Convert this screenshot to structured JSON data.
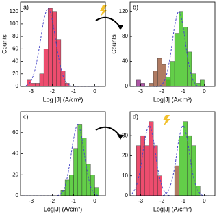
{
  "chart_data": [
    {
      "type": "histogram",
      "label": "a)",
      "xlabel": "Log |J| (A/cm²)",
      "ylabel": "Counts",
      "xlim": [
        -3.5,
        0.5
      ],
      "xticks": [
        -3,
        -2,
        -1,
        0
      ],
      "ylim": [
        0,
        135
      ],
      "yticks": [
        0,
        20,
        40,
        60,
        80,
        100,
        120
      ],
      "bins": [
        -3.4,
        -3.2,
        -3.0,
        -2.8,
        -2.6,
        -2.4,
        -2.2,
        -2.0,
        -1.8,
        -1.6,
        -1.4,
        -1.2,
        -1.0,
        -0.8,
        -0.6,
        -0.4,
        -0.2,
        0.0,
        0.2
      ],
      "series": [
        {
          "color": "#e8204a",
          "values": [
            0,
            10,
            5,
            5,
            20,
            60,
            125,
            120,
            75,
            25,
            5,
            0,
            0,
            0,
            0,
            0,
            0,
            0
          ]
        }
      ],
      "fits": [
        {
          "color": "#4848c8",
          "x": [
            -3.4,
            -3.2,
            -3.0,
            -2.8,
            -2.6,
            -2.4,
            -2.2,
            -2.0,
            -1.8,
            -1.6,
            -1.4,
            -1.2,
            -1.0,
            -0.8,
            -0.6,
            -0.4,
            -0.2,
            0.0,
            0.2
          ],
          "values": [
            0,
            2,
            9,
            29,
            65,
            106,
            125,
            106,
            65,
            29,
            9,
            2,
            0,
            0,
            0,
            0,
            0,
            0,
            0
          ]
        }
      ]
    },
    {
      "type": "histogram",
      "label": "b)",
      "xlabel": "Log|J| (A/cm²)",
      "ylabel": "Counts",
      "xlim": [
        -3.5,
        0.5
      ],
      "xticks": [
        -3,
        -2,
        -1,
        0
      ],
      "ylim": [
        0,
        135
      ],
      "yticks": [
        0,
        40,
        80,
        120
      ],
      "bins": [
        -3.4,
        -3.2,
        -3.0,
        -2.8,
        -2.6,
        -2.4,
        -2.2,
        -2.0,
        -1.8,
        -1.6,
        -1.4,
        -1.2,
        -1.0,
        -0.8,
        -0.6,
        -0.4,
        -0.2,
        0.0,
        0.2
      ],
      "series": [
        {
          "color": "#9a2a90",
          "values": [
            0,
            10,
            5,
            0,
            0,
            0,
            0,
            0,
            0,
            0,
            0,
            0,
            0,
            0,
            0,
            0,
            0,
            0
          ]
        },
        {
          "color": "#9c5a3c",
          "values": [
            0,
            0,
            0,
            0,
            5,
            25,
            45,
            35,
            10,
            0,
            0,
            0,
            0,
            0,
            0,
            0,
            0,
            0
          ]
        },
        {
          "color": "#3cc21c",
          "values": [
            0,
            0,
            0,
            0,
            0,
            0,
            0,
            0,
            15,
            40,
            85,
            120,
            95,
            55,
            20,
            5,
            10,
            0
          ]
        }
      ],
      "fits": [
        {
          "color": "#4848c8",
          "x": [
            -3.4,
            -3.2,
            -3.0,
            -2.8,
            -2.6,
            -2.4,
            -2.2,
            -2.0,
            -1.8,
            -1.6,
            -1.4,
            -1.2,
            -1.0,
            -0.8,
            -0.6,
            -0.4,
            -0.2,
            0.0,
            0.2
          ],
          "values": [
            0,
            0,
            0,
            0,
            0,
            0,
            0,
            3,
            16,
            49,
            96,
            120,
            96,
            49,
            16,
            3,
            0,
            0,
            0
          ]
        }
      ]
    },
    {
      "type": "histogram",
      "label": "c)",
      "xlabel": "Log|J| (A/cm²)",
      "xlim": [
        -3.5,
        0.5
      ],
      "xticks": [
        -3,
        -2,
        -1,
        0
      ],
      "ylim": [
        0,
        80
      ],
      "yticks": [
        0,
        20,
        40,
        60
      ],
      "bins": [
        -3.4,
        -3.2,
        -3.0,
        -2.8,
        -2.6,
        -2.4,
        -2.2,
        -2.0,
        -1.8,
        -1.6,
        -1.4,
        -1.2,
        -1.0,
        -0.8,
        -0.6,
        -0.4,
        -0.2,
        0.0,
        0.2
      ],
      "series": [
        {
          "color": "#3cc21c",
          "values": [
            0,
            0,
            0,
            0,
            0,
            0,
            0,
            0,
            0,
            5,
            15,
            20,
            45,
            68,
            55,
            30,
            20,
            8
          ]
        }
      ],
      "fits": [
        {
          "color": "#4848c8",
          "x": [
            -3.4,
            -3.2,
            -3.0,
            -2.8,
            -2.6,
            -2.4,
            -2.2,
            -2.0,
            -1.8,
            -1.6,
            -1.4,
            -1.2,
            -1.0,
            -0.8,
            -0.6,
            -0.4,
            -0.2,
            0.0,
            0.2
          ],
          "values": [
            0,
            0,
            0,
            0,
            0,
            0,
            0,
            0,
            0,
            2,
            9,
            28,
            54,
            68,
            54,
            28,
            9,
            2,
            0
          ]
        }
      ]
    },
    {
      "type": "histogram",
      "label": "d)",
      "xlabel": "Log|J| (A/cm²)",
      "xlim": [
        -3.5,
        0.5
      ],
      "xticks": [
        -3,
        -2,
        -1,
        0
      ],
      "ylim": [
        0,
        42
      ],
      "yticks": [
        0,
        10,
        20,
        30
      ],
      "bins": [
        -3.4,
        -3.2,
        -3.0,
        -2.8,
        -2.6,
        -2.4,
        -2.2,
        -2.0,
        -1.8,
        -1.6,
        -1.4,
        -1.2,
        -1.0,
        -0.8,
        -0.6,
        -0.4,
        -0.2,
        0.0,
        0.2
      ],
      "series": [
        {
          "color": "#e8204a",
          "values": [
            0,
            25,
            30,
            25,
            37,
            25,
            10,
            0,
            0,
            0,
            0,
            0,
            0,
            0,
            0,
            0,
            0,
            0
          ]
        },
        {
          "color": "#9c5a3c",
          "values": [
            0,
            0,
            0,
            0,
            0,
            0,
            0,
            0,
            0,
            0,
            15,
            0,
            0,
            0,
            0,
            0,
            0,
            0
          ]
        },
        {
          "color": "#3cc21c",
          "values": [
            0,
            0,
            0,
            0,
            0,
            0,
            0,
            0,
            0,
            0,
            0,
            30,
            37,
            30,
            25,
            5,
            0,
            0
          ]
        }
      ],
      "fits": [
        {
          "color": "#4848c8",
          "x": [
            -3.4,
            -3.2,
            -3.0,
            -2.8,
            -2.6,
            -2.4,
            -2.2,
            -2.0,
            -1.8,
            -1.6,
            -1.4,
            -1.2,
            -1.0,
            -0.8,
            -0.6,
            -0.4,
            -0.2,
            0.0,
            0.2
          ],
          "values": [
            1,
            5,
            14,
            28,
            35,
            28,
            14,
            5,
            1,
            0,
            0,
            0,
            0,
            0,
            0,
            0,
            0,
            0,
            0
          ]
        },
        {
          "color": "#4848c8",
          "x": [
            -3.4,
            -3.2,
            -3.0,
            -2.8,
            -2.6,
            -2.4,
            -2.2,
            -2.0,
            -1.8,
            -1.6,
            -1.4,
            -1.2,
            -1.0,
            -0.8,
            -0.6,
            -0.4,
            -0.2,
            0.0,
            0.2
          ],
          "values": [
            0,
            0,
            0,
            0,
            0,
            0,
            0,
            0,
            1,
            5,
            14,
            28,
            35,
            28,
            14,
            5,
            1,
            0,
            0
          ]
        }
      ]
    }
  ]
}
